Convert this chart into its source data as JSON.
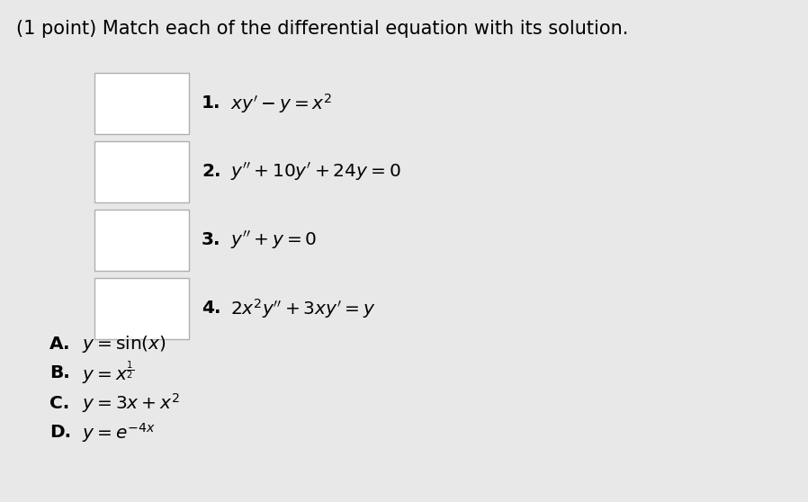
{
  "background_color": "#e8e8e8",
  "title": "(1 point) Match each of the differential equation with its solution.",
  "title_fontsize": 15,
  "equations": [
    {
      "label": "1.",
      "math": "$xy^{\\prime} - y = x^2$",
      "row": 0
    },
    {
      "label": "2.",
      "math": "$y^{\\prime\\prime} + 10y^{\\prime} + 24y = 0$",
      "row": 1
    },
    {
      "label": "3.",
      "math": "$y^{\\prime\\prime} + y = 0$",
      "row": 2
    },
    {
      "label": "4.",
      "math": "$2x^2y^{\\prime\\prime} + 3xy^{\\prime} = y$",
      "row": 3
    }
  ],
  "solutions": [
    {
      "label": "A.",
      "math": "$y = \\sin(x)$"
    },
    {
      "label": "B.",
      "math": "$y = x^{\\frac{1}{2}}$"
    },
    {
      "label": "C.",
      "math": "$y = 3x + x^2$"
    },
    {
      "label": "D.",
      "math": "$y = e^{-4x}$"
    }
  ],
  "box_facecolor": "#ffffff",
  "box_edgecolor": "#b0b0b0",
  "eq_fontsize": 14.5,
  "sol_fontsize": 14.5,
  "fig_width": 8.98,
  "fig_height": 5.58,
  "dpi": 100
}
